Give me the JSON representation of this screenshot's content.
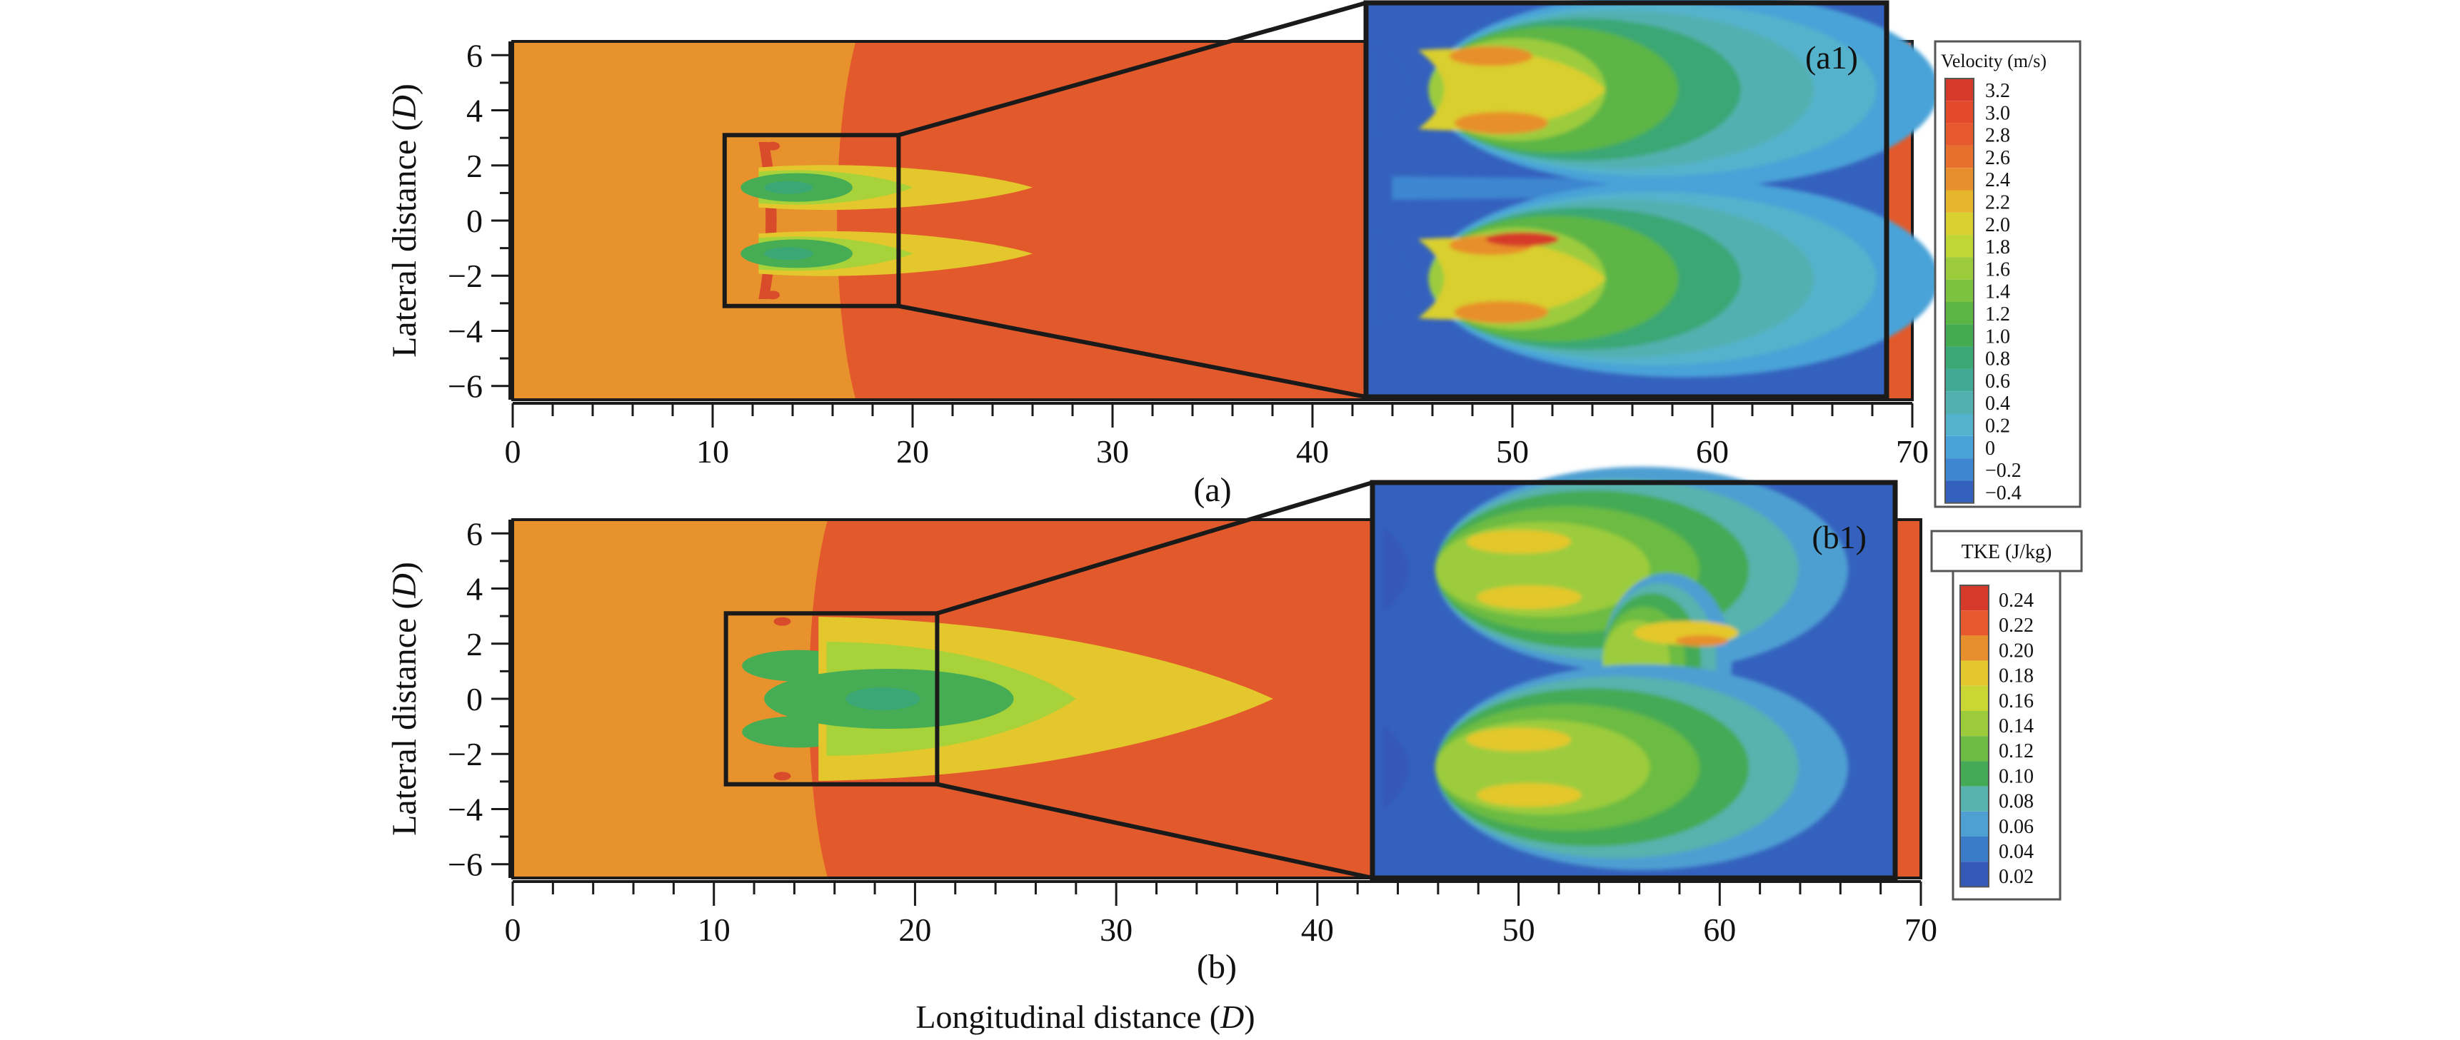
{
  "figure": {
    "x_label_prefix": "Longitudinal distance (",
    "x_label_unit": "D",
    "x_label_suffix": ")"
  },
  "chart_data": [
    {
      "type": "heatmap",
      "panel_label": "(a)",
      "inset_label": "(a1)",
      "quantity": "velocity",
      "ylabel_prefix": "Lateral distance (",
      "ylabel_unit": "D",
      "ylabel_suffix": ")",
      "xlim": [
        0,
        70
      ],
      "ylim": [
        -6.5,
        6.5
      ],
      "x_ticks": [
        0,
        10,
        20,
        30,
        40,
        50,
        60,
        70
      ],
      "y_ticks": [
        6,
        4,
        2,
        0,
        -2,
        -4,
        -6
      ],
      "zoom_box": {
        "x": [
          10.6,
          19.3
        ],
        "y": [
          -3.1,
          3.1
        ]
      },
      "inset_range": {
        "x": [
          42.8,
          68.6
        ],
        "y": [
          -6.4,
          7.5
        ]
      },
      "legend": {
        "title": "Velocity (m/s)",
        "levels": [
          "3.2",
          "3.0",
          "2.8",
          "2.6",
          "2.4",
          "2.2",
          "2.0",
          "1.8",
          "1.6",
          "1.4",
          "1.2",
          "1.0",
          "0.8",
          "0.6",
          "0.4",
          "0.2",
          "0",
          "−0.2",
          "−0.4"
        ],
        "colors": [
          "#d63a2a",
          "#e24a2b",
          "#e5592c",
          "#e8702e",
          "#e78f2c",
          "#e6b52b",
          "#d9cf2e",
          "#bfd636",
          "#9ccc3c",
          "#7cc13f",
          "#5bb545",
          "#43aa52",
          "#3aa774",
          "#40aa95",
          "#53b0b0",
          "#55b2cc",
          "#4aa3d8",
          "#3e86d0",
          "#3461bd"
        ]
      },
      "field": {
        "background_color": "#e8922e",
        "far_wake_color": "#e25a2b",
        "wake_start_x": 16.8,
        "near_core_color": "#46ad55",
        "wake_tail_color": "#e4c72c"
      }
    },
    {
      "type": "heatmap",
      "panel_label": "(b)",
      "inset_label": "(b1)",
      "quantity": "tke",
      "ylabel_prefix": "Lateral distance (",
      "ylabel_unit": "D",
      "ylabel_suffix": ")",
      "xlim": [
        0,
        70
      ],
      "ylim": [
        -6.5,
        6.5
      ],
      "x_ticks": [
        0,
        10,
        20,
        30,
        40,
        50,
        60,
        70
      ],
      "y_ticks": [
        6,
        4,
        2,
        0,
        -2,
        -4,
        -6
      ],
      "zoom_box": {
        "x": [
          10.6,
          21.1
        ],
        "y": [
          -3.1,
          3.1
        ]
      },
      "inset_range": {
        "x": [
          43.1,
          68.8
        ],
        "y": [
          -6.4,
          7.5
        ]
      },
      "legend": {
        "title": "TKE (J/kg)",
        "levels": [
          "0.24",
          "0.22",
          "0.20",
          "0.18",
          "0.16",
          "0.14",
          "0.12",
          "0.10",
          "0.08",
          "0.06",
          "0.04",
          "0.02"
        ],
        "colors": [
          "#d63a2a",
          "#e5592c",
          "#e78f2c",
          "#e4c72c",
          "#c9d634",
          "#9ccc3c",
          "#6cbb43",
          "#44aa55",
          "#56b3ad",
          "#4e9fd2",
          "#3a7cc8",
          "#3559b6"
        ]
      },
      "field": {
        "background_color": "#e8922e",
        "far_wake_color": "#e25a2b",
        "wake_start_x": 15.3,
        "near_core_color": "#46ad55",
        "wake_tail_color": "#e4c72c"
      }
    }
  ]
}
